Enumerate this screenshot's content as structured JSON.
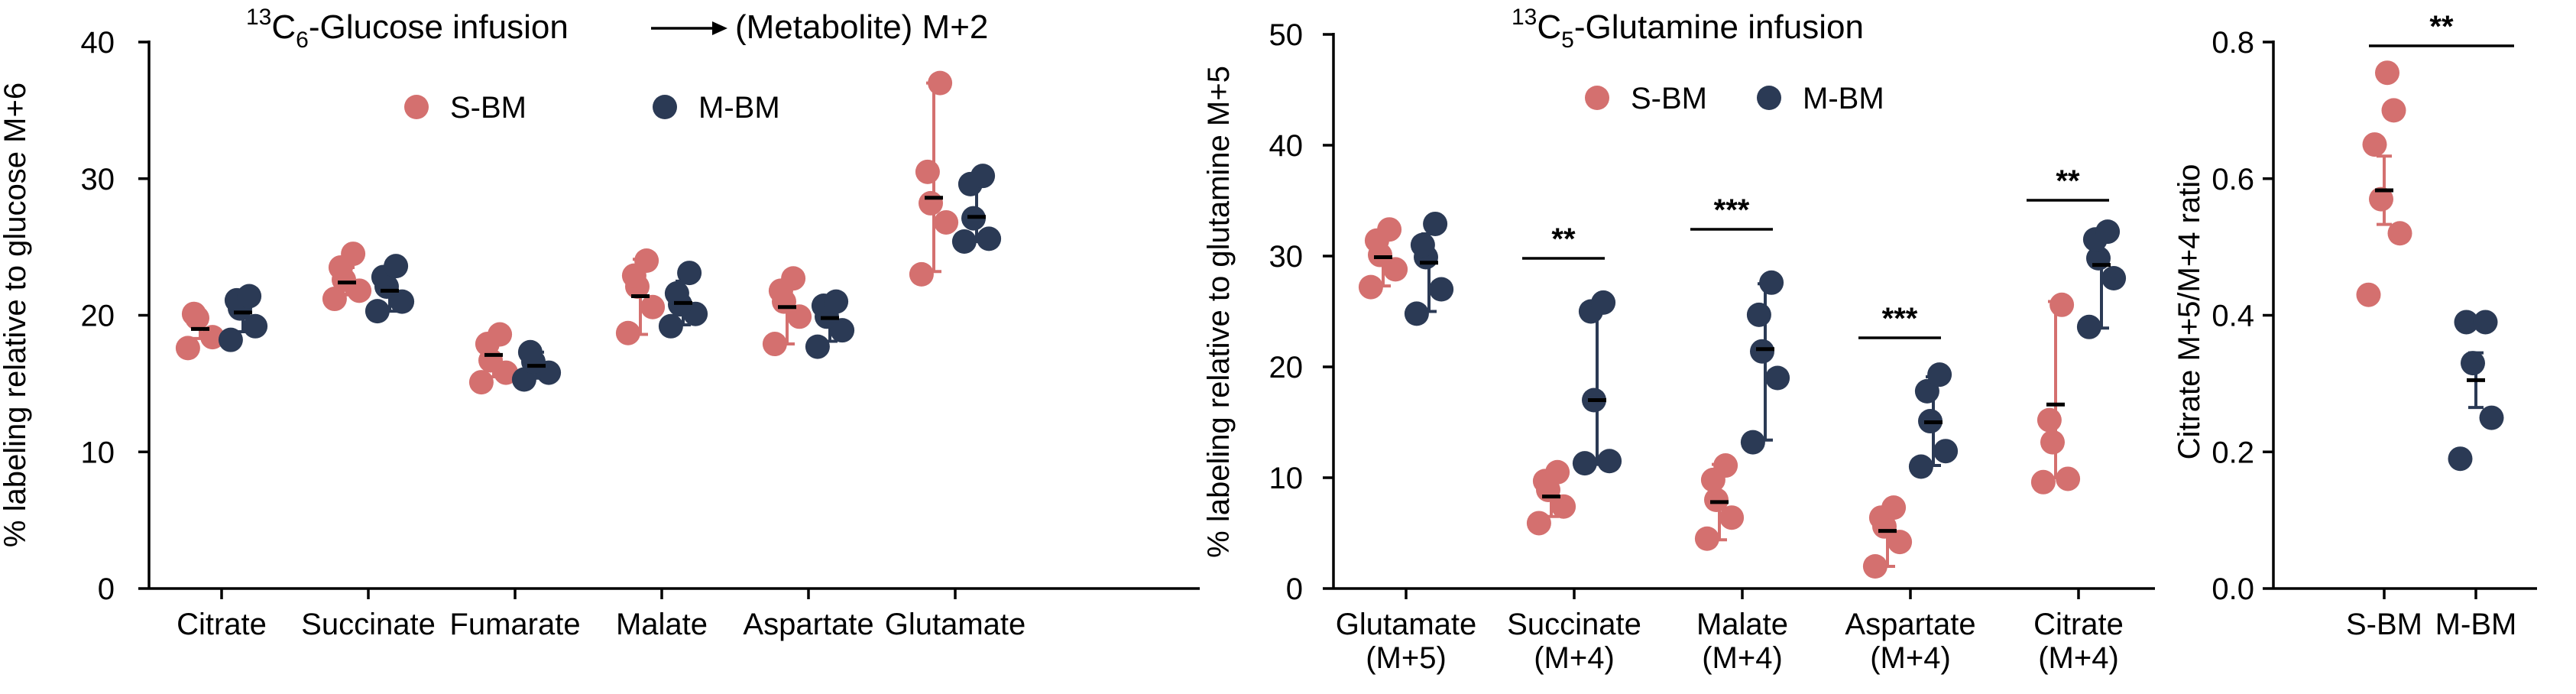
{
  "colors": {
    "s_bm": "#d4706f",
    "m_bm": "#2b3a55",
    "axis": "#000000"
  },
  "chart_data": [
    {
      "type": "scatter",
      "title_parts": {
        "sup": "13",
        "base": "C",
        "sub": "6",
        "text": "-Glucose infusion",
        "suffix": "(Metabolite) M+2"
      },
      "ylabel": "% labeling relative to glucose M+6",
      "ylim": [
        0,
        40
      ],
      "yticks": [
        "0",
        "10",
        "20",
        "30",
        "40"
      ],
      "legend_placement": "top-center",
      "categories": [
        "Citrate",
        "Succinate",
        "Fumarate",
        "Malate",
        "Aspartate",
        "Glutamate"
      ],
      "series": [
        {
          "name": "S-BM",
          "color": "#d4706f",
          "points": [
            [
              17.6,
              18.4,
              19.8,
              20.1
            ],
            [
              21.2,
              21.8,
              22.6,
              23.5,
              24.5
            ],
            [
              15.1,
              15.8,
              16.7,
              17.9,
              18.6
            ],
            [
              18.7,
              20.6,
              22.1,
              22.9,
              24.0
            ],
            [
              17.9,
              19.9,
              21.0,
              21.8,
              22.7
            ],
            [
              23.0,
              26.8,
              28.2,
              30.5,
              37.0
            ]
          ],
          "mean": [
            19.0,
            22.4,
            17.1,
            21.4,
            20.6,
            28.6
          ],
          "err": [
            [
              18.3,
              19.7
            ],
            [
              21.5,
              23.5
            ],
            [
              15.5,
              18.4
            ],
            [
              18.6,
              24.1
            ],
            [
              17.9,
              22.4
            ],
            [
              23.2,
              37.0
            ]
          ]
        },
        {
          "name": "M-BM",
          "color": "#2b3a55",
          "points": [
            [
              18.2,
              19.2,
              20.5,
              21.1,
              21.4
            ],
            [
              20.3,
              21.0,
              22.1,
              22.8,
              23.6
            ],
            [
              15.3,
              15.8,
              16.6,
              17.3
            ],
            [
              19.2,
              20.1,
              20.8,
              21.6,
              23.1
            ],
            [
              17.7,
              18.9,
              19.9,
              20.7,
              21.0
            ],
            [
              25.4,
              25.6,
              27.1,
              29.6,
              30.2
            ]
          ],
          "mean": [
            20.2,
            21.8,
            16.3,
            20.9,
            19.8,
            27.2
          ],
          "err": [
            [
              18.8,
              21.6
            ],
            [
              20.3,
              23.4
            ],
            [
              15.4,
              17.3
            ],
            [
              19.3,
              22.5
            ],
            [
              18.1,
              21.1
            ],
            [
              25.4,
              30.3
            ]
          ]
        }
      ]
    },
    {
      "type": "scatter",
      "title_parts": {
        "sup": "13",
        "base": "C",
        "sub": "5",
        "text": "-Glutamine infusion"
      },
      "ylabel": "% labeling relative to glutamine M+5",
      "ylim": [
        0,
        50
      ],
      "yticks": [
        "0",
        "10",
        "20",
        "30",
        "40",
        "50"
      ],
      "legend_placement": "top-center",
      "categories": [
        [
          "Glutamate",
          "(M+5)"
        ],
        [
          "Succinate",
          "(M+4)"
        ],
        [
          "Malate",
          "(M+4)"
        ],
        [
          "Aspartate",
          "(M+4)"
        ],
        [
          "Citrate",
          "(M+4)"
        ]
      ],
      "series": [
        {
          "name": "S-BM",
          "color": "#d4706f",
          "points": [
            [
              27.2,
              28.8,
              30.1,
              31.4,
              32.4
            ],
            [
              5.9,
              7.4,
              8.9,
              9.7,
              10.5
            ],
            [
              4.5,
              6.4,
              8.0,
              9.8,
              11.1
            ],
            [
              2.0,
              4.2,
              5.6,
              6.4,
              7.3
            ],
            [
              9.6,
              9.9,
              13.2,
              15.2,
              25.6
            ]
          ],
          "mean": [
            29.9,
            8.3,
            7.8,
            5.2,
            16.6
          ],
          "err": [
            [
              27.3,
              31.8
            ],
            [
              6.5,
              10.2
            ],
            [
              4.4,
              11.2
            ],
            [
              2.0,
              7.3
            ],
            [
              10.0,
              25.9
            ]
          ]
        },
        {
          "name": "M-BM",
          "color": "#2b3a55",
          "points": [
            [
              24.8,
              27.0,
              29.9,
              31.0,
              32.9
            ],
            [
              11.3,
              11.5,
              17.0,
              25.0,
              25.8
            ],
            [
              13.2,
              19.0,
              21.4,
              24.7,
              27.6
            ],
            [
              11.0,
              12.4,
              15.1,
              17.8,
              19.3
            ],
            [
              23.6,
              28.0,
              29.8,
              31.5,
              32.2
            ]
          ],
          "mean": [
            29.4,
            17.0,
            21.6,
            15.0,
            29.2
          ],
          "err": [
            [
              25.0,
              32.0
            ],
            [
              11.2,
              25.9
            ],
            [
              13.4,
              27.5
            ],
            [
              11.1,
              19.1
            ],
            [
              23.5,
              32.1
            ]
          ]
        }
      ],
      "significance": [
        {
          "category_index": 1,
          "label": "**"
        },
        {
          "category_index": 2,
          "label": "***"
        },
        {
          "category_index": 3,
          "label": "***"
        },
        {
          "category_index": 4,
          "label": "**"
        }
      ]
    },
    {
      "type": "scatter",
      "ylabel": "Citrate M+5/M+4 ratio",
      "ylim": [
        0,
        0.8
      ],
      "yticks": [
        "0.0",
        "0.2",
        "0.4",
        "0.6",
        "0.8"
      ],
      "categories": [
        "S-BM",
        "M-BM"
      ],
      "series": [
        {
          "name": "S-BM",
          "color": "#d4706f",
          "points": [
            0.43,
            0.52,
            0.57,
            0.65,
            0.7,
            0.755
          ],
          "mean": 0.583,
          "sem": [
            0.533,
            0.633
          ]
        },
        {
          "name": "M-BM",
          "color": "#2b3a55",
          "points": [
            0.19,
            0.25,
            0.33,
            0.39,
            0.39
          ],
          "mean": 0.305,
          "sem": [
            0.265,
            0.345
          ]
        }
      ],
      "significance": [
        {
          "between": [
            0,
            1
          ],
          "label": "**"
        }
      ]
    }
  ]
}
